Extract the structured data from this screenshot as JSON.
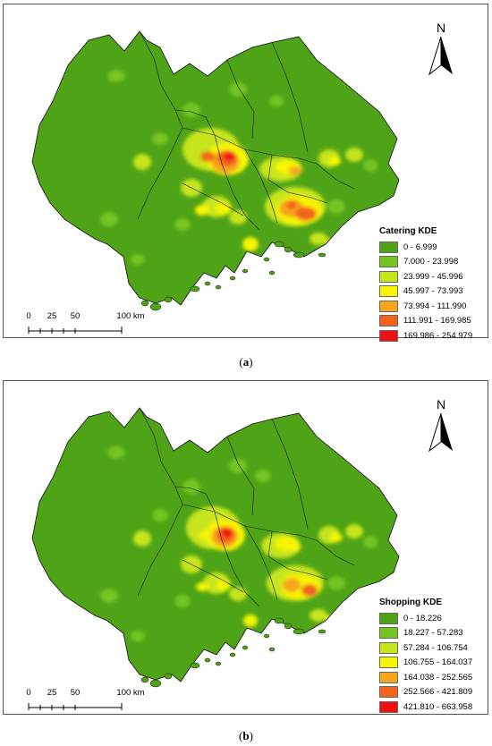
{
  "figure": {
    "panels": [
      {
        "caption_letter": "a",
        "legend": {
          "title": "Catering KDE",
          "classes": [
            {
              "label": "0 - 6.999",
              "color": "#4ea317"
            },
            {
              "label": "7.000 - 23.998",
              "color": "#74c521"
            },
            {
              "label": "23.999 - 45.996",
              "color": "#c7e51b"
            },
            {
              "label": "45.997 - 73.993",
              "color": "#f7f500"
            },
            {
              "label": "73.994 - 111.990",
              "color": "#f7a51c"
            },
            {
              "label": "111.991 - 169.985",
              "color": "#f4631c"
            },
            {
              "label": "169.986 - 254.979",
              "color": "#ee1112"
            }
          ]
        },
        "scale": {
          "ticks": [
            "0",
            "25",
            "50",
            "100 km"
          ]
        },
        "north_label": "N"
      },
      {
        "caption_letter": "b",
        "legend": {
          "title": "Shopping KDE",
          "classes": [
            {
              "label": "0 - 18.226",
              "color": "#4ea317"
            },
            {
              "label": "18.227 - 57.283",
              "color": "#74c521"
            },
            {
              "label": "57.284 - 106.754",
              "color": "#c7e51b"
            },
            {
              "label": "106.755 - 164.037",
              "color": "#f7f500"
            },
            {
              "label": "164.038 - 252.565",
              "color": "#f7a51c"
            },
            {
              "label": "252.566 - 421.809",
              "color": "#f4631c"
            },
            {
              "label": "421.810 - 663.958",
              "color": "#ee1112"
            }
          ]
        },
        "scale": {
          "ticks": [
            "0",
            "25",
            "50",
            "100 km"
          ]
        },
        "north_label": "N"
      }
    ]
  }
}
